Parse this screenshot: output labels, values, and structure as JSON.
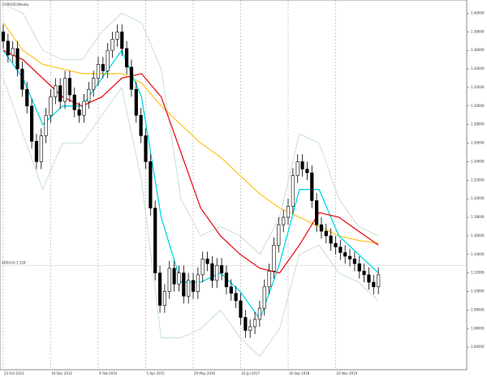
{
  "chart_data": {
    "type": "candlestick",
    "title": "EURUSD,Weekly",
    "annotation": "ADX(14) 1.128",
    "hline": 1.128,
    "ylim": [
      1.02,
      1.41
    ],
    "yticks": [
      {
        "value": 1.04,
        "label": "1.04000"
      },
      {
        "value": 1.06,
        "label": "1.06000"
      },
      {
        "value": 1.08,
        "label": "1.08000"
      },
      {
        "value": 1.1,
        "label": "1.10000"
      },
      {
        "value": 1.12,
        "label": "1.12000"
      },
      {
        "value": 1.14,
        "label": "1.14000"
      },
      {
        "value": 1.16,
        "label": "1.16000"
      },
      {
        "value": 1.18,
        "label": "1.18000"
      },
      {
        "value": 1.2,
        "label": "1.20000"
      },
      {
        "value": 1.22,
        "label": "1.22000"
      },
      {
        "value": 1.24,
        "label": "1.24000"
      },
      {
        "value": 1.26,
        "label": "1.26000"
      },
      {
        "value": 1.28,
        "label": "1.28000"
      },
      {
        "value": 1.3,
        "label": "1.30000"
      },
      {
        "value": 1.32,
        "label": "1.32000"
      },
      {
        "value": 1.34,
        "label": "1.34000"
      },
      {
        "value": 1.36,
        "label": "1.36000"
      },
      {
        "value": 1.38,
        "label": "1.38000"
      },
      {
        "value": 1.4,
        "label": "1.40000"
      }
    ],
    "xticks": [
      {
        "value": 0,
        "label": "23 Oct 2011"
      },
      {
        "value": 10,
        "label": "16 Dec 2012"
      },
      {
        "value": 20,
        "label": "9 Feb 2014"
      },
      {
        "value": 30,
        "label": "5 Apr 2015"
      },
      {
        "value": 40,
        "label": "29 May 2016"
      },
      {
        "value": 50,
        "label": "23 Jul 2017"
      },
      {
        "value": 60,
        "label": "16 Sep 2018"
      },
      {
        "value": 70,
        "label": "10 Nov 2019"
      }
    ],
    "open": [
      1.38,
      1.37,
      1.355,
      1.362,
      1.34,
      1.318,
      1.3,
      1.262,
      1.24,
      1.268,
      1.29,
      1.31,
      1.322,
      1.305,
      1.33,
      1.312,
      1.296,
      1.29,
      1.305,
      1.318,
      1.33,
      1.345,
      1.338,
      1.36,
      1.372,
      1.38,
      1.362,
      1.342,
      1.318,
      1.29,
      1.268,
      1.24,
      1.19,
      1.12,
      1.085,
      1.1,
      1.125,
      1.108,
      1.12,
      1.095,
      1.112,
      1.1,
      1.118,
      1.135,
      1.13,
      1.112,
      1.128,
      1.12,
      1.105,
      1.098,
      1.09,
      1.072,
      1.058,
      1.062,
      1.07,
      1.082,
      1.105,
      1.122,
      1.15,
      1.172,
      1.18,
      1.192,
      1.225,
      1.24,
      1.232,
      1.228,
      1.198,
      1.172,
      1.165,
      1.16,
      1.152,
      1.148,
      1.142,
      1.138,
      1.135,
      1.13,
      1.122,
      1.118,
      1.11,
      1.105
    ],
    "high": [
      1.388,
      1.378,
      1.37,
      1.37,
      1.348,
      1.326,
      1.308,
      1.27,
      1.276,
      1.298,
      1.318,
      1.33,
      1.33,
      1.338,
      1.338,
      1.32,
      1.304,
      1.313,
      1.326,
      1.338,
      1.353,
      1.353,
      1.368,
      1.38,
      1.388,
      1.388,
      1.37,
      1.35,
      1.326,
      1.298,
      1.276,
      1.248,
      1.198,
      1.128,
      1.108,
      1.133,
      1.133,
      1.128,
      1.128,
      1.12,
      1.12,
      1.126,
      1.143,
      1.143,
      1.138,
      1.136,
      1.136,
      1.128,
      1.113,
      1.106,
      1.098,
      1.08,
      1.07,
      1.078,
      1.09,
      1.113,
      1.13,
      1.158,
      1.18,
      1.188,
      1.2,
      1.233,
      1.248,
      1.248,
      1.24,
      1.236,
      1.206,
      1.18,
      1.173,
      1.168,
      1.16,
      1.156,
      1.15,
      1.146,
      1.143,
      1.138,
      1.13,
      1.126,
      1.118,
      1.126
    ],
    "low": [
      1.362,
      1.347,
      1.347,
      1.332,
      1.31,
      1.292,
      1.254,
      1.232,
      1.232,
      1.26,
      1.282,
      1.302,
      1.297,
      1.297,
      1.304,
      1.288,
      1.282,
      1.282,
      1.297,
      1.31,
      1.322,
      1.33,
      1.33,
      1.352,
      1.364,
      1.354,
      1.334,
      1.31,
      1.282,
      1.26,
      1.232,
      1.182,
      1.112,
      1.077,
      1.077,
      1.092,
      1.1,
      1.1,
      1.087,
      1.087,
      1.092,
      1.092,
      1.11,
      1.122,
      1.104,
      1.104,
      1.112,
      1.097,
      1.09,
      1.082,
      1.064,
      1.05,
      1.05,
      1.054,
      1.062,
      1.074,
      1.097,
      1.114,
      1.142,
      1.164,
      1.172,
      1.184,
      1.217,
      1.224,
      1.22,
      1.19,
      1.164,
      1.157,
      1.152,
      1.144,
      1.14,
      1.134,
      1.13,
      1.127,
      1.122,
      1.114,
      1.11,
      1.102,
      1.097,
      1.097
    ],
    "close": [
      1.37,
      1.355,
      1.362,
      1.34,
      1.318,
      1.3,
      1.262,
      1.24,
      1.268,
      1.29,
      1.31,
      1.322,
      1.305,
      1.33,
      1.312,
      1.296,
      1.29,
      1.305,
      1.318,
      1.33,
      1.345,
      1.338,
      1.36,
      1.372,
      1.38,
      1.362,
      1.342,
      1.318,
      1.29,
      1.268,
      1.24,
      1.19,
      1.12,
      1.085,
      1.1,
      1.125,
      1.108,
      1.12,
      1.095,
      1.112,
      1.1,
      1.118,
      1.135,
      1.13,
      1.112,
      1.128,
      1.12,
      1.105,
      1.098,
      1.09,
      1.072,
      1.058,
      1.062,
      1.07,
      1.082,
      1.105,
      1.122,
      1.15,
      1.172,
      1.18,
      1.192,
      1.225,
      1.24,
      1.232,
      1.228,
      1.198,
      1.172,
      1.165,
      1.16,
      1.152,
      1.148,
      1.142,
      1.138,
      1.135,
      1.13,
      1.122,
      1.118,
      1.11,
      1.105,
      1.118
    ],
    "indicators": [
      {
        "color": "#b9dcc0",
        "values": [
          1.41,
          1.4,
          1.36,
          1.35,
          1.35,
          1.38,
          1.4,
          1.39,
          1.34,
          1.2,
          1.16,
          1.17,
          1.16,
          1.14,
          1.18,
          1.27,
          1.26,
          1.2,
          1.17,
          1.16
        ]
      },
      {
        "color": "#b9dcc0",
        "values": [
          1.33,
          1.27,
          1.21,
          1.26,
          1.26,
          1.29,
          1.32,
          1.22,
          1.05,
          1.05,
          1.06,
          1.08,
          1.05,
          1.03,
          1.06,
          1.14,
          1.15,
          1.12,
          1.11,
          1.09
        ]
      },
      {
        "color": "#ffc72c",
        "values": [
          1.39,
          1.36,
          1.345,
          1.34,
          1.335,
          1.335,
          1.335,
          1.325,
          1.3,
          1.28,
          1.26,
          1.245,
          1.225,
          1.205,
          1.19,
          1.18,
          1.17,
          1.16,
          1.155,
          1.152
        ]
      },
      {
        "color": "#00d8e8",
        "values": [
          1.36,
          1.33,
          1.28,
          1.3,
          1.3,
          1.33,
          1.36,
          1.31,
          1.18,
          1.11,
          1.11,
          1.12,
          1.1,
          1.07,
          1.13,
          1.21,
          1.21,
          1.16,
          1.14,
          1.12
        ]
      },
      {
        "color": "#e8151b",
        "values": [
          1.36,
          1.35,
          1.33,
          1.31,
          1.3,
          1.31,
          1.33,
          1.335,
          1.31,
          1.25,
          1.19,
          1.16,
          1.14,
          1.125,
          1.12,
          1.15,
          1.185,
          1.18,
          1.165,
          1.15
        ]
      }
    ]
  }
}
